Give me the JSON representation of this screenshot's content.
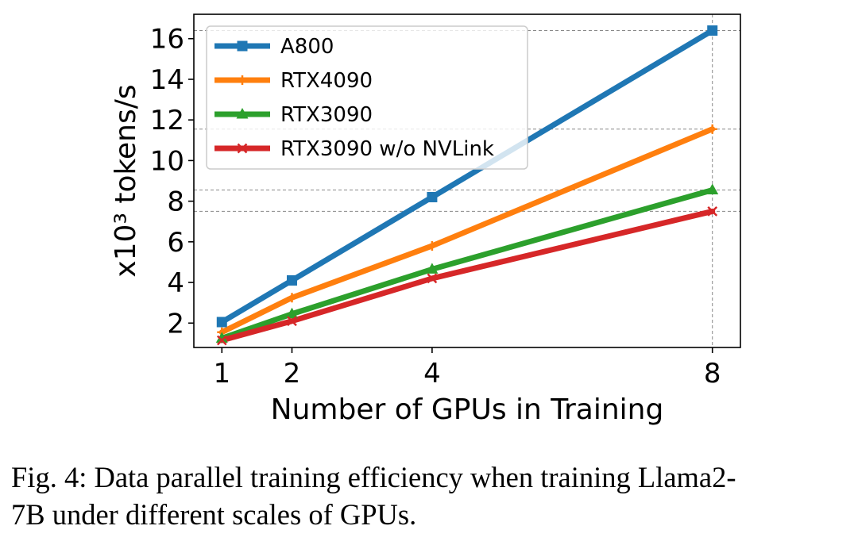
{
  "chart_data": {
    "type": "line",
    "title": "",
    "xlabel": "Number of GPUs in Training",
    "ylabel": "x10³ tokens/s",
    "x": [
      1,
      2,
      4,
      8
    ],
    "xlim": [
      0.6,
      8.4
    ],
    "ylim": [
      0.8,
      17.2
    ],
    "xticks": [
      1,
      2,
      4,
      8
    ],
    "yticks": [
      2,
      4,
      6,
      8,
      10,
      12,
      14,
      16
    ],
    "grid": false,
    "reference_lines": [
      16.4,
      11.55,
      8.55,
      7.5
    ],
    "legend": "top-left",
    "series": [
      {
        "name": "A800",
        "values": [
          2.05,
          4.1,
          8.2,
          16.4
        ],
        "color": "#1f77b4",
        "marker": "square"
      },
      {
        "name": "RTX4090",
        "values": [
          1.55,
          3.25,
          5.8,
          11.55
        ],
        "color": "#ff7f0e",
        "marker": "plus"
      },
      {
        "name": "RTX3090",
        "values": [
          1.25,
          2.45,
          4.65,
          8.55
        ],
        "color": "#2ca02c",
        "marker": "triangle"
      },
      {
        "name": "RTX3090 w/o NVLink",
        "values": [
          1.15,
          2.1,
          4.2,
          7.5
        ],
        "color": "#d62728",
        "marker": "x"
      }
    ]
  },
  "caption": {
    "line1": "Fig. 4: Data parallel training efficiency when training Llama2-",
    "line2": "7B under different scales of GPUs."
  }
}
